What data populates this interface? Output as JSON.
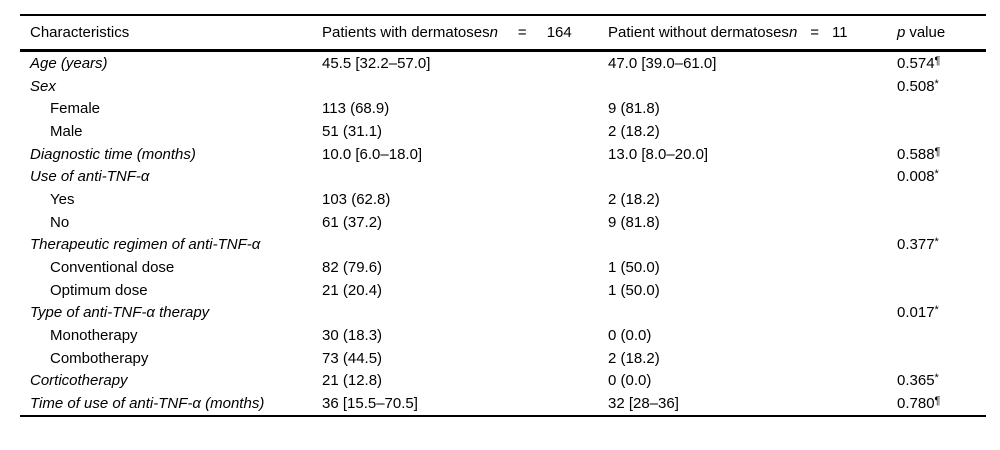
{
  "table": {
    "header": {
      "characteristics": "Characteristics",
      "col2": {
        "label": "Patients with dermatoses",
        "n_symbol": "n",
        "eq": "=",
        "n_value": "164"
      },
      "col3": {
        "label": "Patient without dermatoses",
        "n_symbol": "n",
        "eq": "=",
        "n_value": "11"
      },
      "col4": {
        "p_symbol": "p",
        "label": "value"
      }
    },
    "rows": [
      {
        "label": "Age (years)",
        "italic": true,
        "indent": false,
        "col2": "45.5 [32.2–57.0]",
        "col3": "47.0 [39.0–61.0]",
        "p": "0.574",
        "p_sup": "¶"
      },
      {
        "label": "Sex",
        "italic": true,
        "indent": false,
        "col2": "",
        "col3": "",
        "p": "0.508",
        "p_sup": "*"
      },
      {
        "label": "Female",
        "italic": false,
        "indent": true,
        "col2": "113 (68.9)",
        "col3": "9 (81.8)",
        "p": "",
        "p_sup": ""
      },
      {
        "label": "Male",
        "italic": false,
        "indent": true,
        "col2": "51 (31.1)",
        "col3": "2 (18.2)",
        "p": "",
        "p_sup": ""
      },
      {
        "label": "Diagnostic time (months)",
        "italic": true,
        "indent": false,
        "col2": "10.0 [6.0–18.0]",
        "col3": "13.0 [8.0–20.0]",
        "p": "0.588",
        "p_sup": "¶"
      },
      {
        "label": "Use of anti-TNF-α",
        "italic": true,
        "indent": false,
        "col2": "",
        "col3": "",
        "p": "0.008",
        "p_sup": "*"
      },
      {
        "label": "Yes",
        "italic": false,
        "indent": true,
        "col2": "103 (62.8)",
        "col3": "2 (18.2)",
        "p": "",
        "p_sup": ""
      },
      {
        "label": "No",
        "italic": false,
        "indent": true,
        "col2": "61 (37.2)",
        "col3": "9 (81.8)",
        "p": "",
        "p_sup": ""
      },
      {
        "label": "Therapeutic regimen of anti-TNF-α",
        "italic": true,
        "indent": false,
        "col2": "",
        "col3": "",
        "p": "0.377",
        "p_sup": "*"
      },
      {
        "label": "Conventional dose",
        "italic": false,
        "indent": true,
        "col2": "82 (79.6)",
        "col3": "1 (50.0)",
        "p": "",
        "p_sup": ""
      },
      {
        "label": "Optimum dose",
        "italic": false,
        "indent": true,
        "col2": "21 (20.4)",
        "col3": "1 (50.0)",
        "p": "",
        "p_sup": ""
      },
      {
        "label": "Type of anti-TNF-α therapy",
        "italic": true,
        "indent": false,
        "col2": "",
        "col3": "",
        "p": "0.017",
        "p_sup": "*"
      },
      {
        "label": "Monotherapy",
        "italic": false,
        "indent": true,
        "col2": "30 (18.3)",
        "col3": "0 (0.0)",
        "p": "",
        "p_sup": ""
      },
      {
        "label": "Combotherapy",
        "italic": false,
        "indent": true,
        "col2": "73 (44.5)",
        "col3": "2 (18.2)",
        "p": "",
        "p_sup": ""
      },
      {
        "label": "Corticotherapy",
        "italic": true,
        "indent": false,
        "col2": "21 (12.8)",
        "col3": "0 (0.0)",
        "p": "0.365",
        "p_sup": "*"
      },
      {
        "label": "Time of use of anti-TNF-α (months)",
        "italic": true,
        "indent": false,
        "col2": "36 [15.5–70.5]",
        "col3": "32 [28–36]",
        "p": "0.780",
        "p_sup": "¶"
      }
    ]
  }
}
